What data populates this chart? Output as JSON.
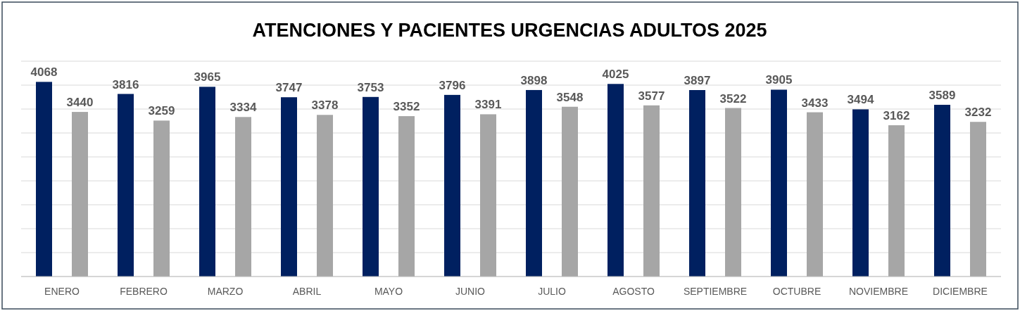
{
  "chart_data": {
    "type": "bar",
    "title": "ATENCIONES Y PACIENTES URGENCIAS ADULTOS 2025",
    "categories": [
      "ENERO",
      "FEBRERO",
      "MARZO",
      "ABRIL",
      "MAYO",
      "JUNIO",
      "JULIO",
      "AGOSTO",
      "SEPTIEMBRE",
      "OCTUBRE",
      "NOVIEMBRE",
      "DICIEMBRE"
    ],
    "series": [
      {
        "color": "#002060",
        "values": [
          4068,
          3816,
          3965,
          3747,
          3753,
          3796,
          3898,
          4025,
          3897,
          3905,
          3494,
          3589
        ]
      },
      {
        "color": "#a6a6a6",
        "values": [
          3440,
          3259,
          3334,
          3378,
          3352,
          3391,
          3548,
          3577,
          3522,
          3433,
          3162,
          3232
        ]
      }
    ],
    "ylim": [
      0,
      4500
    ],
    "yticks": [
      {
        "value": 0,
        "label": null
      },
      {
        "value": 500,
        "label": null
      },
      {
        "value": 1000,
        "label": null
      },
      {
        "value": 1500,
        "label": null
      },
      {
        "value": 2000,
        "label": null
      },
      {
        "value": 2500,
        "label": null
      },
      {
        "value": 3000,
        "label": null
      },
      {
        "value": 3500,
        "label": null
      },
      {
        "value": 4000,
        "label": null
      },
      {
        "value": 4500,
        "label": null
      }
    ],
    "grid": "y",
    "tick_labels": "x",
    "data_labels": true
  }
}
